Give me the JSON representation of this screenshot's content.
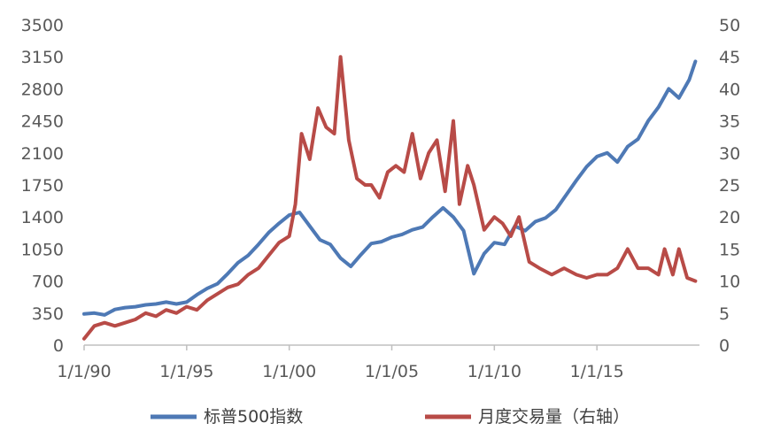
{
  "chart_data": {
    "type": "line",
    "title": "",
    "xlabel": "",
    "ylabel": "",
    "y2label": "",
    "x_tick_labels": [
      "1/1/90",
      "1/1/95",
      "1/1/00",
      "1/1/05",
      "1/1/10",
      "1/1/15"
    ],
    "x_tick_years": [
      1990,
      1995,
      2000,
      2005,
      2010,
      2015
    ],
    "xlim": [
      1990,
      2020
    ],
    "ylim": [
      0,
      3500
    ],
    "y_ticks": [
      0,
      350,
      700,
      1050,
      1400,
      1750,
      2100,
      2450,
      2800,
      3150,
      3500
    ],
    "y2lim": [
      0,
      50
    ],
    "y2_ticks": [
      0,
      5,
      10,
      15,
      20,
      25,
      30,
      35,
      40,
      45,
      50
    ],
    "grid": false,
    "legend_position": "bottom",
    "series": [
      {
        "name": "标普500指数",
        "axis": "left",
        "color": "#4E79B5",
        "x": [
          1990.0,
          1990.5,
          1991.0,
          1991.5,
          1992.0,
          1992.5,
          1993.0,
          1993.5,
          1994.0,
          1994.5,
          1995.0,
          1995.5,
          1996.0,
          1996.5,
          1997.0,
          1997.5,
          1998.0,
          1998.5,
          1999.0,
          1999.5,
          2000.0,
          2000.5,
          2001.0,
          2001.5,
          2002.0,
          2002.5,
          2003.0,
          2003.5,
          2004.0,
          2004.5,
          2005.0,
          2005.5,
          2006.0,
          2006.5,
          2007.0,
          2007.5,
          2008.0,
          2008.5,
          2009.0,
          2009.5,
          2010.0,
          2010.5,
          2011.0,
          2011.5,
          2012.0,
          2012.5,
          2013.0,
          2013.5,
          2014.0,
          2014.5,
          2015.0,
          2015.5,
          2016.0,
          2016.5,
          2017.0,
          2017.5,
          2018.0,
          2018.5,
          2019.0,
          2019.5,
          2019.8
        ],
        "values": [
          340,
          350,
          330,
          390,
          410,
          420,
          440,
          450,
          470,
          450,
          470,
          550,
          620,
          670,
          780,
          900,
          980,
          1100,
          1230,
          1330,
          1420,
          1450,
          1300,
          1150,
          1100,
          950,
          860,
          990,
          1110,
          1130,
          1180,
          1210,
          1260,
          1290,
          1400,
          1500,
          1400,
          1250,
          780,
          1000,
          1120,
          1100,
          1300,
          1250,
          1350,
          1390,
          1480,
          1640,
          1800,
          1950,
          2060,
          2100,
          2000,
          2170,
          2250,
          2450,
          2600,
          2800,
          2700,
          2900,
          3100
        ]
      },
      {
        "name": "月度交易量（右轴）",
        "axis": "right",
        "color": "#B84B47",
        "x": [
          1990.0,
          1990.5,
          1991.0,
          1991.5,
          1992.0,
          1992.5,
          1993.0,
          1993.5,
          1994.0,
          1994.5,
          1995.0,
          1995.5,
          1996.0,
          1996.5,
          1997.0,
          1997.5,
          1998.0,
          1998.5,
          1999.0,
          1999.5,
          2000.0,
          2000.3,
          2000.6,
          2001.0,
          2001.4,
          2001.8,
          2002.2,
          2002.5,
          2002.9,
          2003.3,
          2003.7,
          2004.0,
          2004.4,
          2004.8,
          2005.2,
          2005.6,
          2006.0,
          2006.4,
          2006.8,
          2007.2,
          2007.6,
          2008.0,
          2008.3,
          2008.7,
          2009.0,
          2009.5,
          2010.0,
          2010.4,
          2010.8,
          2011.2,
          2011.7,
          2012.2,
          2012.8,
          2013.4,
          2014.0,
          2014.5,
          2015.0,
          2015.5,
          2016.0,
          2016.5,
          2017.0,
          2017.5,
          2018.0,
          2018.3,
          2018.7,
          2019.0,
          2019.4,
          2019.8
        ],
        "values": [
          1,
          3,
          3.5,
          3,
          3.5,
          4,
          5,
          4.5,
          5.5,
          5,
          6,
          5.5,
          7,
          8,
          9,
          9.5,
          11,
          12,
          14,
          16,
          17,
          22,
          33,
          29,
          37,
          34,
          33,
          45,
          32,
          26,
          25,
          25,
          23,
          27,
          28,
          27,
          33,
          26,
          30,
          32,
          24,
          35,
          22,
          28,
          25,
          18,
          20,
          19,
          17,
          20,
          13,
          12,
          11,
          12,
          11,
          10.5,
          11,
          11,
          12,
          15,
          12,
          12,
          11,
          15,
          11,
          15,
          10.5,
          10
        ]
      }
    ]
  }
}
